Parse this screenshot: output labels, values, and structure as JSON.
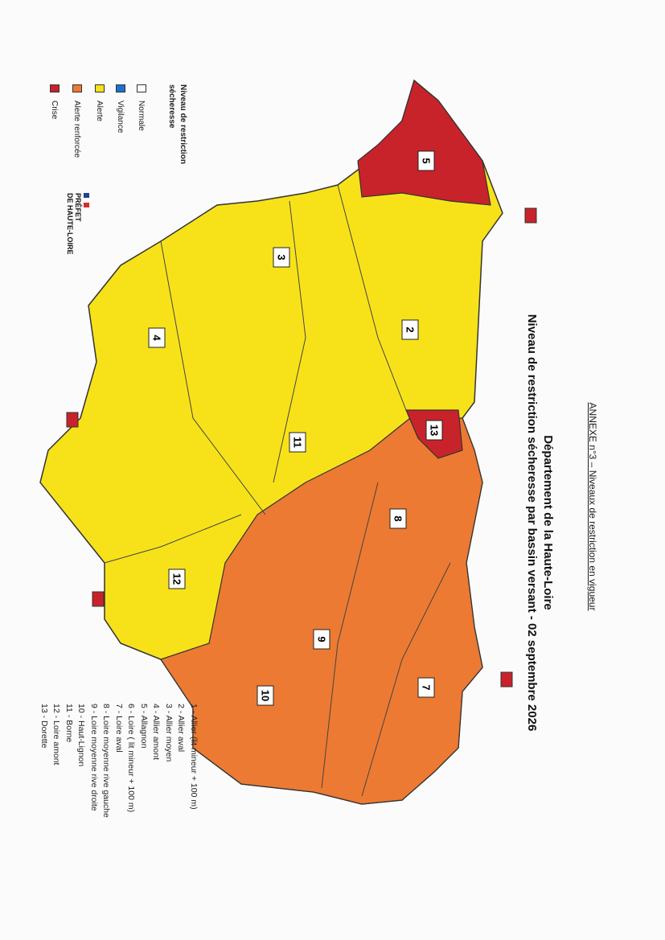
{
  "header": {
    "annex": "ANNEXE n°3 – Niveaux de restriction en vigueur",
    "title": "Département de la Haute-Loire",
    "subtitle": "Niveau de restriction sécheresse par bassin versant - 02 septembre 2026"
  },
  "legend": {
    "title": "Niveau de restriction sécheresse",
    "items": [
      {
        "label": "Normale",
        "color": "#ffffff"
      },
      {
        "label": "Vigilance",
        "color": "#1f6fd6"
      },
      {
        "label": "Alerte",
        "color": "#f7e21a"
      },
      {
        "label": "Alerte renforcée",
        "color": "#ec7a33"
      },
      {
        "label": "Crise",
        "color": "#c8232a"
      }
    ]
  },
  "basins": [
    "1 - Allier (lit mineur + 100 m)",
    "2 - Allier aval",
    "3 - Allier moyen",
    "4 - Allier amont",
    "5 - Allagnon",
    "6 - Loire ( lit mineur + 100 m)",
    "7 - Loire aval",
    "8 - Loire moyenne rive gauche",
    "9 - Loire moyenne rive droite",
    "10 - Haut-Lignon",
    "11 - Borne",
    "12 - Loire amont",
    "13 - Dorette"
  ],
  "map": {
    "labels": [
      "5",
      "3",
      "2",
      "4",
      "13",
      "11",
      "8",
      "12",
      "9",
      "7",
      "10"
    ]
  },
  "logo": {
    "lines": [
      "PRÉFET",
      "DE HAUTE-LOIRE"
    ]
  }
}
